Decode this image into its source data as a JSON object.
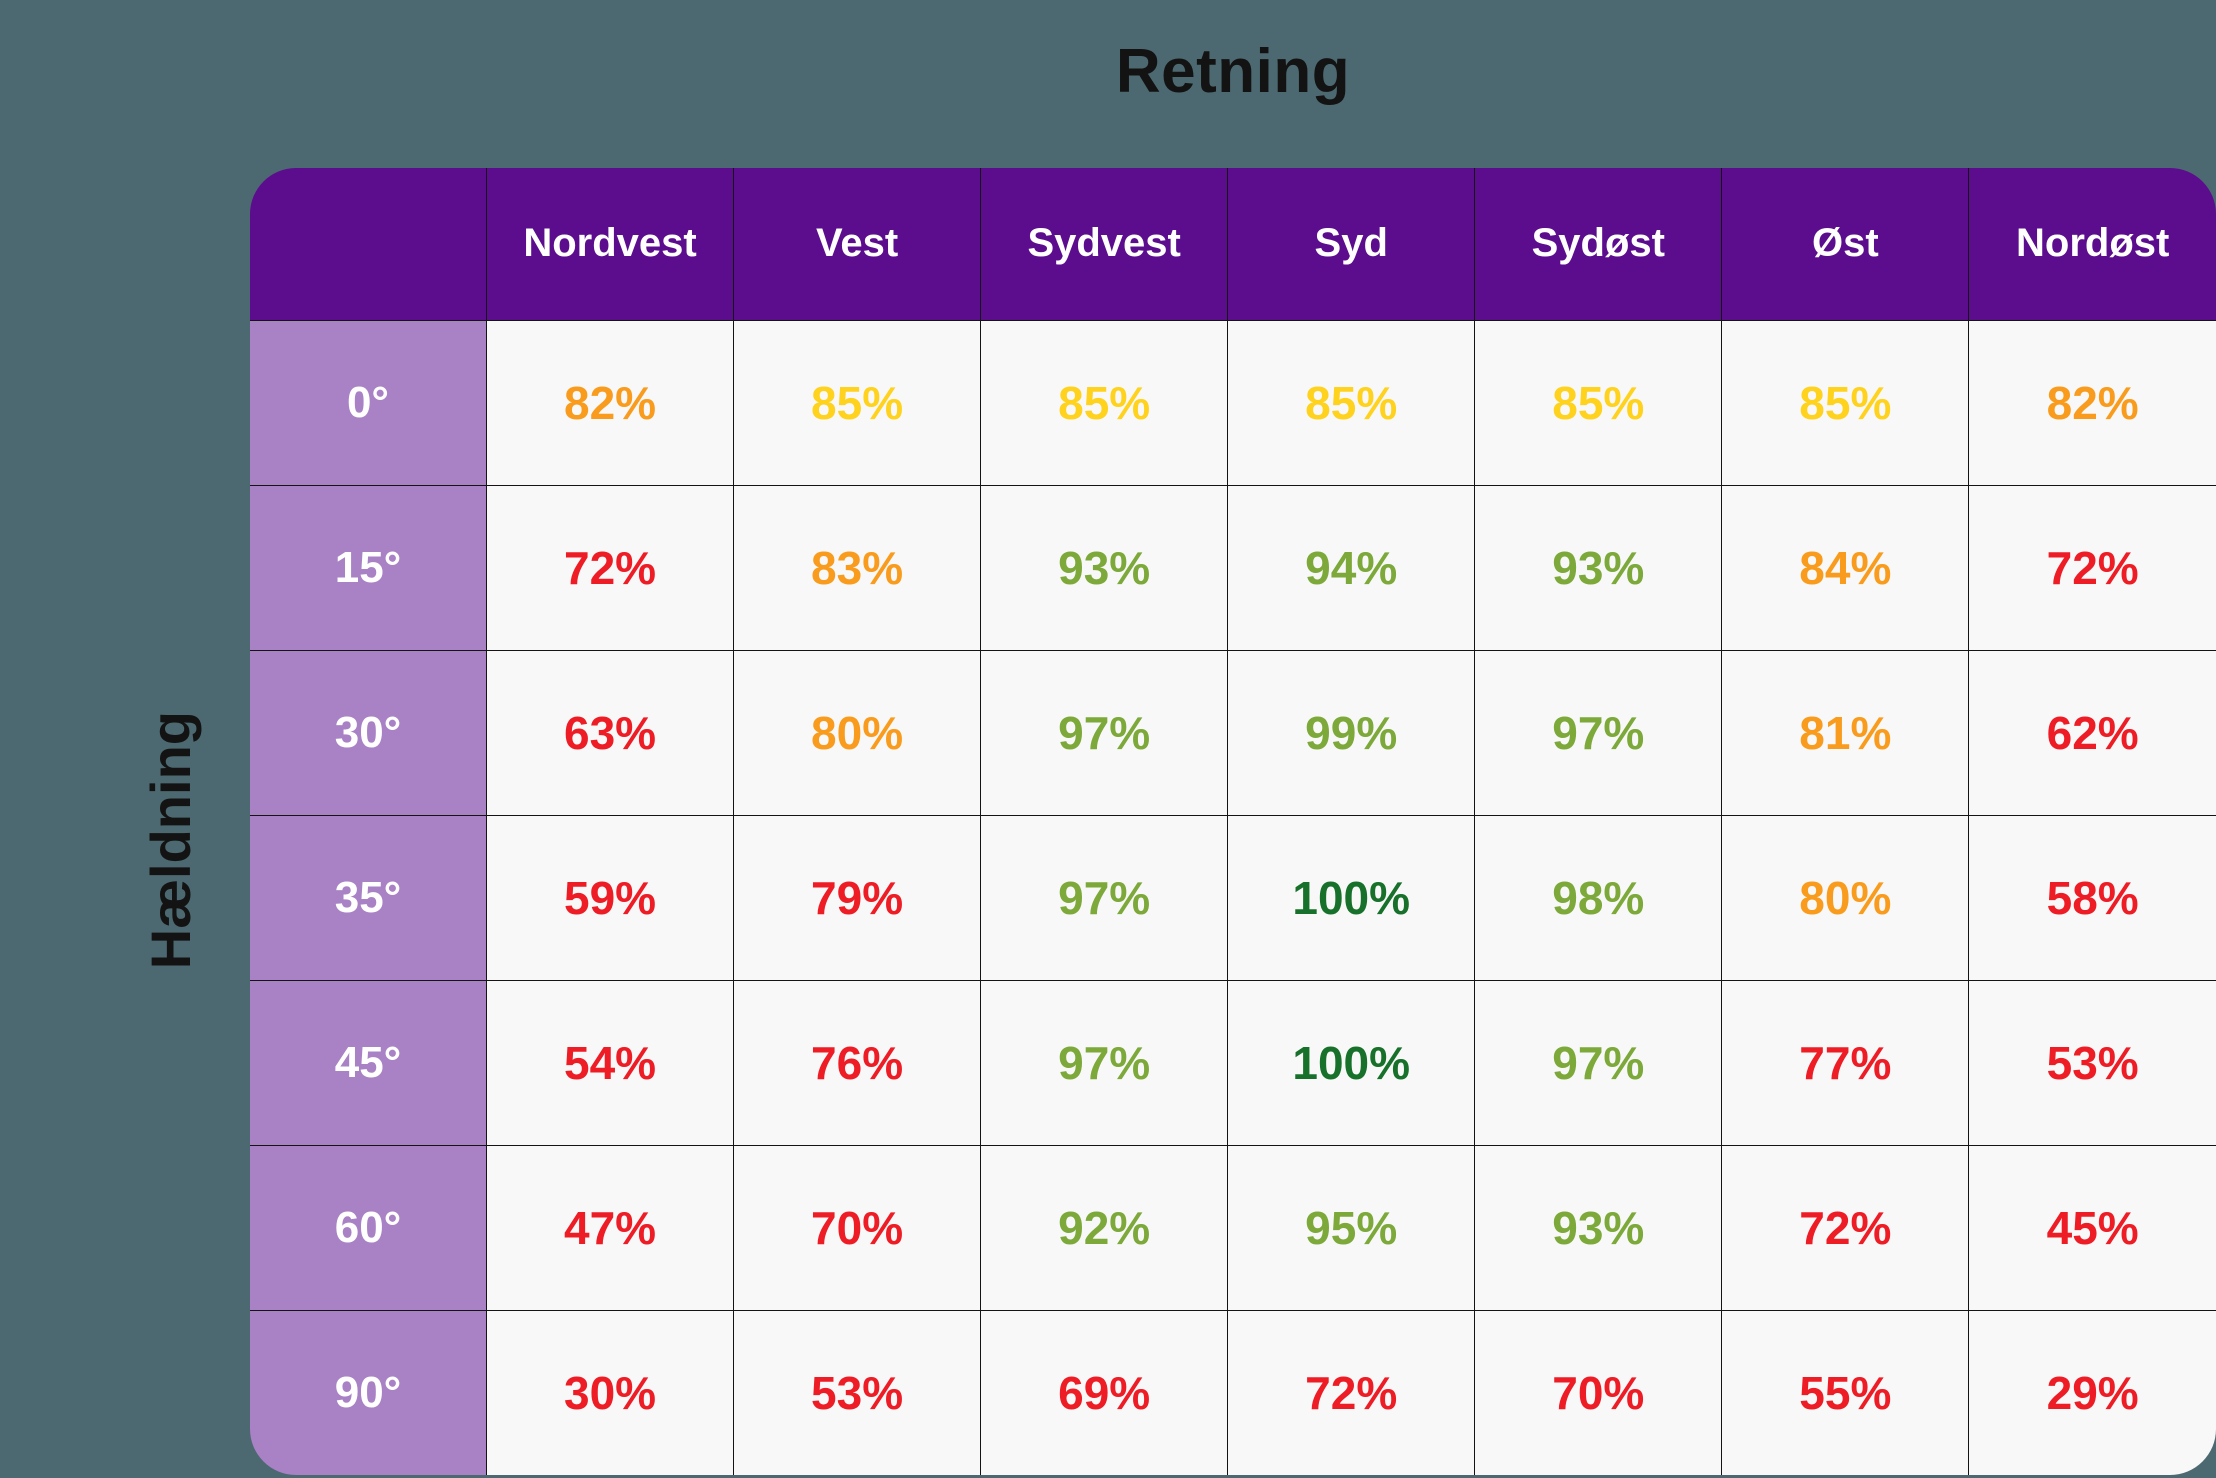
{
  "palette": {
    "page_bg": "#4C6971",
    "header_bg": "#5B0D8E",
    "row_header_bg": "#A981C5",
    "cell_bg": "#F8F8F8",
    "border": "#141414",
    "title_text": "#131313",
    "header_text": "#FFFFFF",
    "red": "#EE1C25",
    "orange": "#F99C1D",
    "yellow": "#FFD21E",
    "green": "#7CA93A",
    "darkgreen": "#17712A"
  },
  "chart_data": {
    "type": "table",
    "title": "Retning",
    "ylabel": "Hældning",
    "columns": [
      "Nordvest",
      "Vest",
      "Sydvest",
      "Syd",
      "Sydøst",
      "Øst",
      "Nordøst"
    ],
    "rows": [
      {
        "label": "0°",
        "values": [
          "82%",
          "85%",
          "85%",
          "85%",
          "85%",
          "85%",
          "82%"
        ],
        "colors": [
          "orange",
          "yellow",
          "yellow",
          "yellow",
          "yellow",
          "yellow",
          "orange"
        ]
      },
      {
        "label": "15°",
        "values": [
          "72%",
          "83%",
          "93%",
          "94%",
          "93%",
          "84%",
          "72%"
        ],
        "colors": [
          "red",
          "orange",
          "green",
          "green",
          "green",
          "orange",
          "red"
        ]
      },
      {
        "label": "30°",
        "values": [
          "63%",
          "80%",
          "97%",
          "99%",
          "97%",
          "81%",
          "62%"
        ],
        "colors": [
          "red",
          "orange",
          "green",
          "green",
          "green",
          "orange",
          "red"
        ]
      },
      {
        "label": "35°",
        "values": [
          "59%",
          "79%",
          "97%",
          "100%",
          "98%",
          "80%",
          "58%"
        ],
        "colors": [
          "red",
          "red",
          "green",
          "darkgreen",
          "green",
          "orange",
          "red"
        ]
      },
      {
        "label": "45°",
        "values": [
          "54%",
          "76%",
          "97%",
          "100%",
          "97%",
          "77%",
          "53%"
        ],
        "colors": [
          "red",
          "red",
          "green",
          "darkgreen",
          "green",
          "red",
          "red"
        ]
      },
      {
        "label": "60°",
        "values": [
          "47%",
          "70%",
          "92%",
          "95%",
          "93%",
          "72%",
          "45%"
        ],
        "colors": [
          "red",
          "red",
          "green",
          "green",
          "green",
          "red",
          "red"
        ]
      },
      {
        "label": "90°",
        "values": [
          "30%",
          "53%",
          "69%",
          "72%",
          "70%",
          "55%",
          "29%"
        ],
        "colors": [
          "red",
          "red",
          "red",
          "red",
          "red",
          "red",
          "red"
        ]
      }
    ]
  }
}
